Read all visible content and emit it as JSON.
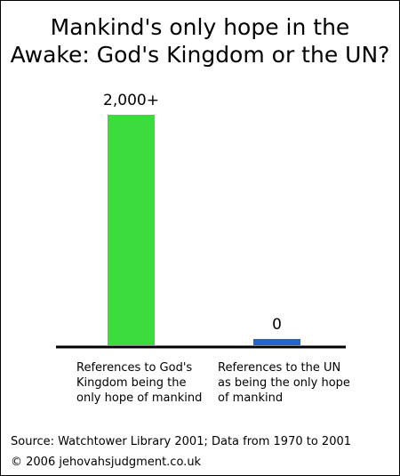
{
  "chart_data": {
    "type": "bar",
    "title": "Mankind's only hope in the Awake: God's Kingdom or the UN?",
    "categories": [
      "References to God's Kingdom being the only hope of mankind",
      "References to the UN as being the only hope of mankind"
    ],
    "values": [
      2000,
      0
    ],
    "value_labels": [
      "2,000+",
      "0"
    ],
    "colors": [
      "#3ddc3d",
      "#2a62d4"
    ]
  },
  "footer": {
    "source": "Source: Watchtower Library 2001; Data from 1970 to 2001",
    "copyright": "© 2006 jehovahsjudgment.co.uk"
  }
}
